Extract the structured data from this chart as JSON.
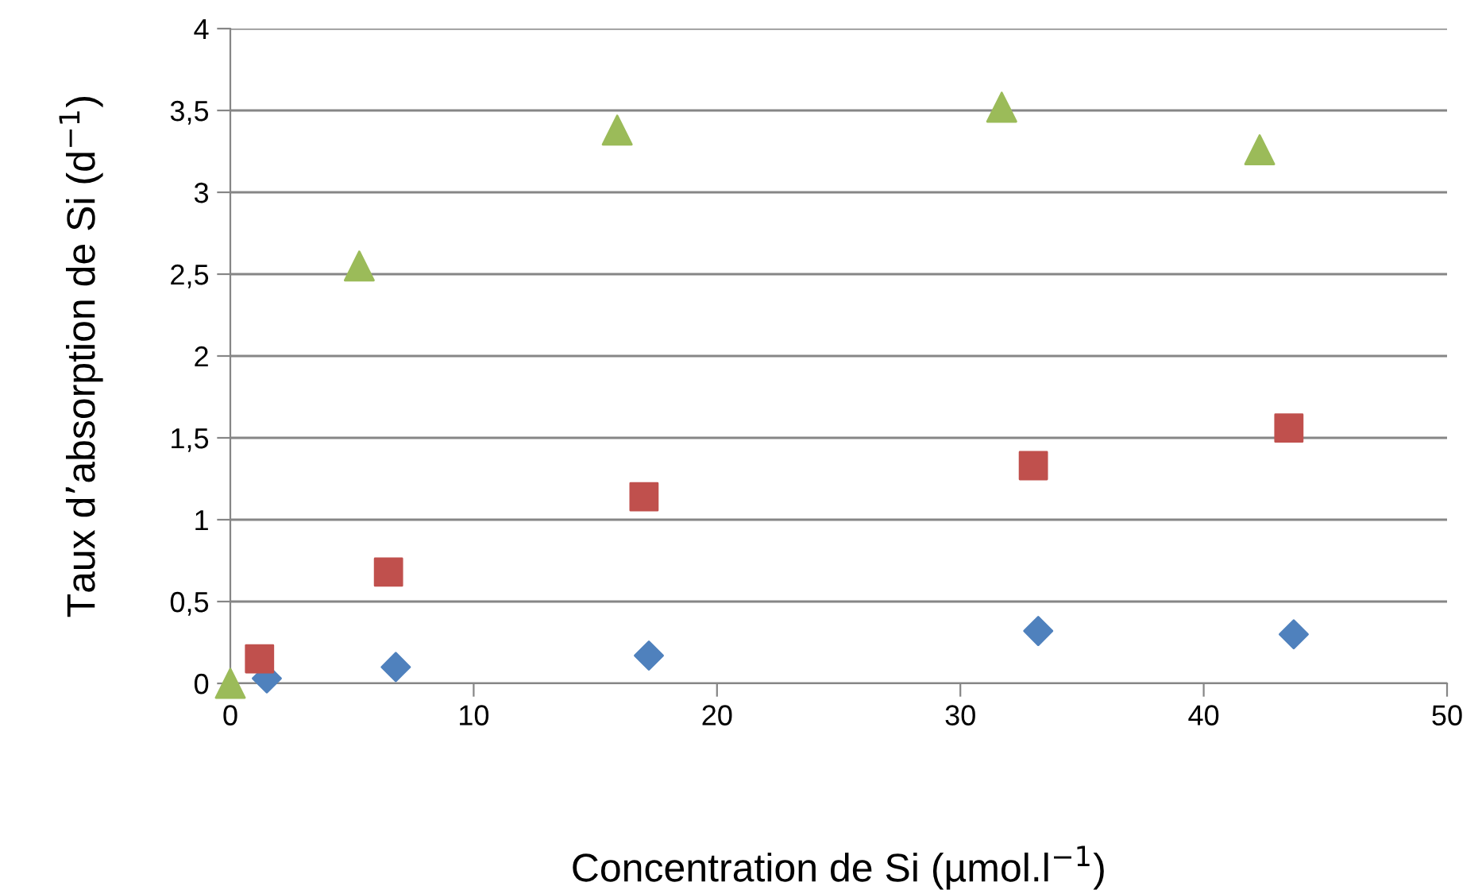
{
  "chart_data": {
    "type": "scatter",
    "xlabel": "Concentration de Si (µmol.l$^{−1}$)",
    "ylabel": "Taux d’absorption de Si (d$^{−1}$)",
    "xlim": [
      0,
      50
    ],
    "xticks": [
      0,
      10,
      20,
      30,
      40,
      50
    ],
    "ylim": [
      0,
      4
    ],
    "yticks": [
      0,
      {
        "value": 0.5,
        "label": "0,5"
      },
      1,
      {
        "value": 1.5,
        "label": "1,5"
      },
      2,
      {
        "value": 2.5,
        "label": "2,5"
      },
      3,
      {
        "value": 3.5,
        "label": "3,5"
      },
      4
    ],
    "grid": "y",
    "series": [
      {
        "color": "#4f81bd",
        "marker": "diamond",
        "x": [
          1.5,
          6.8,
          17.2,
          33.2,
          43.7
        ],
        "values": [
          0.03,
          0.1,
          0.17,
          0.32,
          0.3
        ]
      },
      {
        "color": "#c0504d",
        "marker": "square",
        "x": [
          1.2,
          6.5,
          17.0,
          33.0,
          43.5
        ],
        "values": [
          0.15,
          0.68,
          1.14,
          1.33,
          1.56
        ]
      },
      {
        "color": "#9bbb59",
        "marker": "triangle",
        "x": [
          0,
          5.3,
          15.9,
          31.7,
          42.3
        ],
        "values": [
          0,
          2.55,
          3.38,
          3.52,
          3.26
        ]
      }
    ]
  }
}
